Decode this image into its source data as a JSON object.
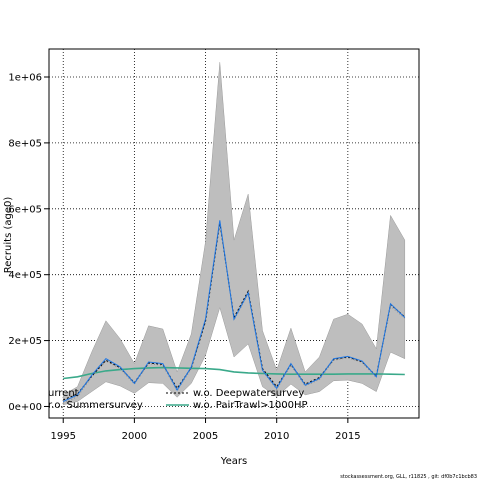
{
  "chart_data": {
    "type": "line",
    "title": "",
    "xlabel": "Years",
    "ylabel": "Recruits (age0)",
    "xlim": [
      1994,
      2020
    ],
    "ylim": [
      -35000,
      1085000
    ],
    "grid": true,
    "grid_style": "dotted",
    "x_ticks": [
      1995,
      2000,
      2005,
      2010,
      2015
    ],
    "y_ticks": [
      0,
      200000,
      400000,
      600000,
      800000,
      1000000
    ],
    "y_tick_labels": [
      "0e+00",
      "2e+05",
      "4e+05",
      "6e+05",
      "8e+05",
      "1e+06"
    ],
    "years": [
      1995,
      1996,
      1997,
      1998,
      1999,
      2000,
      2001,
      2002,
      2003,
      2004,
      2005,
      2006,
      2007,
      2008,
      2009,
      2010,
      2011,
      2012,
      2013,
      2014,
      2015,
      2016,
      2017,
      2018,
      2019
    ],
    "band": {
      "color": "#bebebe",
      "lower": [
        5000,
        15000,
        45000,
        75000,
        62000,
        40000,
        72000,
        70000,
        28000,
        70000,
        155000,
        300000,
        150000,
        190000,
        60000,
        30000,
        68000,
        35000,
        45000,
        78000,
        80000,
        70000,
        45000,
        165000,
        145000
      ],
      "upper": [
        35000,
        60000,
        165000,
        260000,
        205000,
        130000,
        245000,
        235000,
        105000,
        220000,
        500000,
        1045000,
        505000,
        645000,
        230000,
        110000,
        238000,
        105000,
        150000,
        265000,
        280000,
        250000,
        175000,
        580000,
        505000
      ]
    },
    "series": [
      {
        "name": "current",
        "color": "#1f77e4",
        "values": [
          15000,
          35000,
          95000,
          145000,
          120000,
          70000,
          135000,
          130000,
          50000,
          120000,
          265000,
          565000,
          265000,
          345000,
          110000,
          55000,
          130000,
          65000,
          85000,
          145000,
          152000,
          138000,
          90000,
          312000,
          270000
        ]
      },
      {
        "name": "w.o. Deepwatersurvey",
        "color": "#000000",
        "values": [
          20000,
          38000,
          92000,
          140000,
          118000,
          72000,
          132000,
          128000,
          55000,
          118000,
          258000,
          558000,
          270000,
          350000,
          115000,
          60000,
          128000,
          68000,
          88000,
          143000,
          150000,
          136000,
          92000,
          310000,
          272000
        ]
      },
      {
        "name": "w.o. Summersurvey",
        "color": "#8a8a8a",
        "values": [
          10000,
          30000,
          90000,
          138000,
          115000,
          68000,
          130000,
          125000,
          48000,
          115000,
          260000,
          560000,
          262000,
          342000,
          108000,
          52000,
          125000,
          62000,
          82000,
          140000,
          148000,
          134000,
          88000,
          305000,
          268000
        ]
      },
      {
        "name": "w.o. PairTrawl>1000HP",
        "color": "#3aa98a",
        "values": [
          85000,
          90000,
          100000,
          108000,
          112000,
          115000,
          117000,
          118000,
          117000,
          116000,
          115000,
          112000,
          105000,
          102000,
          100000,
          99000,
          98000,
          98000,
          98000,
          98000,
          99000,
          99000,
          99000,
          98000,
          97000
        ]
      }
    ],
    "legend": {
      "placement": "bottom-left",
      "col1": [
        "urrent",
        "r.o. Summersurvey"
      ],
      "col2": [
        "w.o. Deepwatersurvey",
        "w.o. PairTrawl>1000HP"
      ]
    },
    "footer": "stockassessment.org, GLL, r11825 , git: df0b7c1bcb83"
  }
}
